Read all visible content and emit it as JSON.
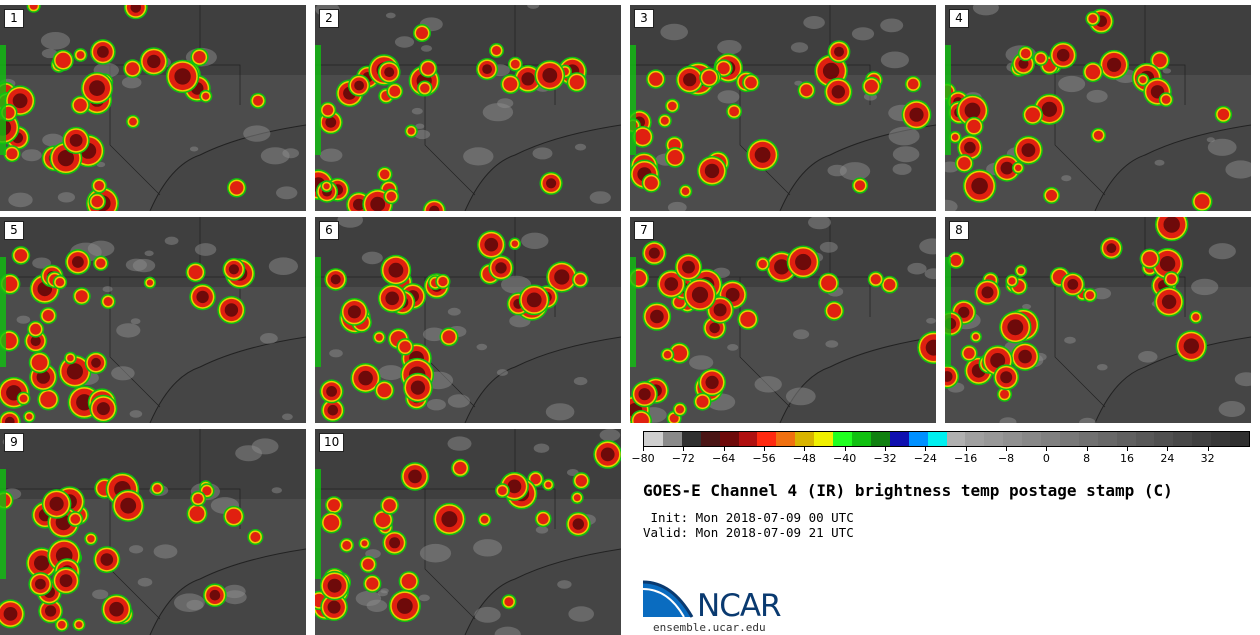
{
  "panels": [
    {
      "label": "1"
    },
    {
      "label": "2"
    },
    {
      "label": "3"
    },
    {
      "label": "4"
    },
    {
      "label": "5"
    },
    {
      "label": "6"
    },
    {
      "label": "7"
    },
    {
      "label": "8"
    },
    {
      "label": "9"
    },
    {
      "label": "10"
    }
  ],
  "colorbar": {
    "colors": [
      "#cfcfcf",
      "#8a8a8a",
      "#303030",
      "#4a1515",
      "#6e0a0a",
      "#b01010",
      "#ff2a10",
      "#f07010",
      "#d8b400",
      "#f0f000",
      "#20ff20",
      "#10c010",
      "#108010",
      "#1010b0",
      "#0090ff",
      "#00f0f0",
      "#b0b0b0",
      "#a0a0a0",
      "#989898",
      "#909090",
      "#888888",
      "#808080",
      "#787878",
      "#707070",
      "#686868",
      "#606060",
      "#585858",
      "#505050",
      "#484848",
      "#404040",
      "#383838",
      "#303030"
    ],
    "tick_labels": [
      "−80",
      "−72",
      "−64",
      "−56",
      "−48",
      "−40",
      "−32",
      "−24",
      "−16",
      "−8",
      "0",
      "8",
      "16",
      "24",
      "32"
    ],
    "min": -80,
    "max": 40
  },
  "title": "GOES-E Channel 4 (IR) brightness temp postage stamp (C)",
  "init": " Init: Mon 2018-07-09 00 UTC",
  "valid": "Valid: Mon 2018-07-09 21 UTC",
  "logo_text": "NCAR",
  "url": "ensemble.ucar.edu"
}
